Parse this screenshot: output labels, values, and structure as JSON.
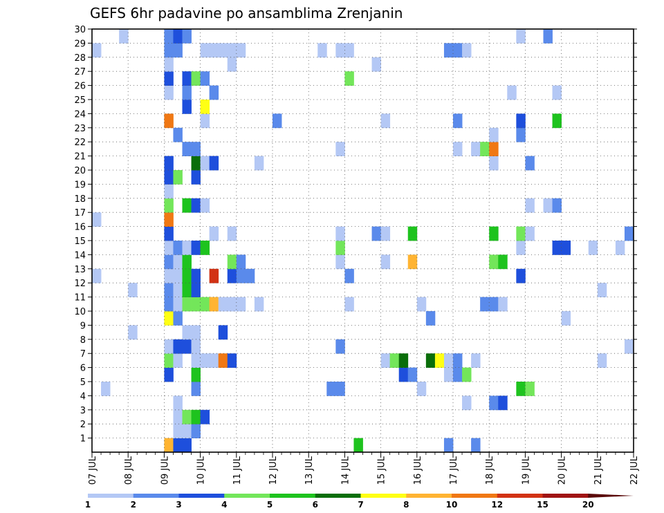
{
  "chart_data": {
    "type": "heatmap",
    "title": "GEFS 6hr padavine po ansamblima Zrenjanin",
    "xlabel": "",
    "ylabel": "",
    "x_tick_labels": [
      "07 JUL",
      "08 JUL",
      "09 JUL",
      "10 JUL",
      "11 JUL",
      "12 JUL",
      "13 JUL",
      "14 JUL",
      "15 JUL",
      "16 JUL",
      "17 JUL",
      "18 JUL",
      "19 JUL",
      "20 JUL",
      "21 JUL",
      "22 JUL"
    ],
    "x_steps_per_day": 4,
    "members": [
      1,
      2,
      3,
      4,
      5,
      6,
      7,
      8,
      9,
      10,
      11,
      12,
      13,
      14,
      15,
      16,
      17,
      18,
      19,
      20,
      21,
      22,
      23,
      24,
      25,
      26,
      27,
      28,
      29,
      30
    ],
    "ylim": [
      0,
      30
    ],
    "grid": true,
    "colorbar": {
      "levels": [
        "1",
        "2",
        "3",
        "4",
        "5",
        "6",
        "7",
        "8",
        "10",
        "12",
        "15",
        "20"
      ],
      "colors": [
        "#b4c8f5",
        "#5a8aeb",
        "#1e4fdc",
        "#73e65a",
        "#1ec31e",
        "#0a6e0a",
        "#ffff14",
        "#ffb432",
        "#f07814",
        "#d23214",
        "#a01414",
        "#5a0a0a"
      ]
    },
    "cells": [
      [
        0,
        8,
        8
      ],
      [
        0,
        9,
        3
      ],
      [
        0,
        10,
        3
      ],
      [
        0,
        29,
        5
      ],
      [
        0,
        39,
        2
      ],
      [
        0,
        42,
        2
      ],
      [
        1,
        9,
        1
      ],
      [
        1,
        10,
        1
      ],
      [
        1,
        11,
        2
      ],
      [
        2,
        9,
        1
      ],
      [
        2,
        10,
        4
      ],
      [
        2,
        11,
        5
      ],
      [
        2,
        12,
        3
      ],
      [
        3,
        9,
        1
      ],
      [
        3,
        41,
        1
      ],
      [
        3,
        44,
        2
      ],
      [
        3,
        45,
        3
      ],
      [
        4,
        1,
        1
      ],
      [
        4,
        11,
        2
      ],
      [
        4,
        26,
        2
      ],
      [
        4,
        27,
        2
      ],
      [
        4,
        36,
        1
      ],
      [
        4,
        47,
        5
      ],
      [
        4,
        48,
        4
      ],
      [
        5,
        8,
        3
      ],
      [
        5,
        11,
        5
      ],
      [
        5,
        34,
        3
      ],
      [
        5,
        35,
        2
      ],
      [
        5,
        39,
        1
      ],
      [
        5,
        40,
        2
      ],
      [
        5,
        41,
        4
      ],
      [
        6,
        8,
        4
      ],
      [
        6,
        9,
        1
      ],
      [
        6,
        11,
        1
      ],
      [
        6,
        12,
        1
      ],
      [
        6,
        13,
        1
      ],
      [
        6,
        14,
        9
      ],
      [
        6,
        15,
        3
      ],
      [
        6,
        32,
        1
      ],
      [
        6,
        33,
        4
      ],
      [
        6,
        34,
        6
      ],
      [
        6,
        37,
        6
      ],
      [
        6,
        38,
        7
      ],
      [
        6,
        39,
        1
      ],
      [
        6,
        40,
        2
      ],
      [
        6,
        42,
        1
      ],
      [
        6,
        56,
        1
      ],
      [
        7,
        8,
        1
      ],
      [
        7,
        9,
        3
      ],
      [
        7,
        10,
        3
      ],
      [
        7,
        11,
        1
      ],
      [
        7,
        27,
        2
      ],
      [
        7,
        59,
        1
      ],
      [
        8,
        4,
        1
      ],
      [
        8,
        10,
        1
      ],
      [
        8,
        11,
        1
      ],
      [
        8,
        14,
        3
      ],
      [
        9,
        8,
        7
      ],
      [
        9,
        9,
        2
      ],
      [
        9,
        37,
        2
      ],
      [
        9,
        52,
        1
      ],
      [
        10,
        8,
        2
      ],
      [
        10,
        9,
        1
      ],
      [
        10,
        10,
        4
      ],
      [
        10,
        11,
        4
      ],
      [
        10,
        12,
        4
      ],
      [
        10,
        13,
        8
      ],
      [
        10,
        14,
        1
      ],
      [
        10,
        15,
        1
      ],
      [
        10,
        16,
        1
      ],
      [
        10,
        18,
        1
      ],
      [
        10,
        28,
        1
      ],
      [
        10,
        36,
        1
      ],
      [
        10,
        43,
        2
      ],
      [
        10,
        44,
        2
      ],
      [
        10,
        45,
        1
      ],
      [
        11,
        4,
        1
      ],
      [
        11,
        8,
        2
      ],
      [
        11,
        9,
        1
      ],
      [
        11,
        10,
        5
      ],
      [
        11,
        11,
        3
      ],
      [
        11,
        56,
        1
      ],
      [
        12,
        0,
        1
      ],
      [
        12,
        8,
        1
      ],
      [
        12,
        9,
        1
      ],
      [
        12,
        10,
        5
      ],
      [
        12,
        11,
        3
      ],
      [
        12,
        13,
        10
      ],
      [
        12,
        15,
        3
      ],
      [
        12,
        16,
        2
      ],
      [
        12,
        17,
        2
      ],
      [
        12,
        28,
        2
      ],
      [
        12,
        47,
        3
      ],
      [
        13,
        8,
        2
      ],
      [
        13,
        9,
        1
      ],
      [
        13,
        10,
        5
      ],
      [
        13,
        15,
        4
      ],
      [
        13,
        16,
        2
      ],
      [
        13,
        27,
        1
      ],
      [
        13,
        32,
        1
      ],
      [
        13,
        35,
        8
      ],
      [
        13,
        44,
        4
      ],
      [
        13,
        45,
        5
      ],
      [
        14,
        8,
        1
      ],
      [
        14,
        9,
        2
      ],
      [
        14,
        10,
        1
      ],
      [
        14,
        11,
        3
      ],
      [
        14,
        12,
        5
      ],
      [
        14,
        27,
        4
      ],
      [
        14,
        47,
        1
      ],
      [
        14,
        51,
        3
      ],
      [
        14,
        52,
        3
      ],
      [
        14,
        55,
        1
      ],
      [
        14,
        58,
        1
      ],
      [
        15,
        8,
        3
      ],
      [
        15,
        13,
        1
      ],
      [
        15,
        15,
        1
      ],
      [
        15,
        27,
        1
      ],
      [
        15,
        31,
        2
      ],
      [
        15,
        32,
        1
      ],
      [
        15,
        35,
        5
      ],
      [
        15,
        44,
        5
      ],
      [
        15,
        47,
        4
      ],
      [
        15,
        48,
        1
      ],
      [
        15,
        59,
        2
      ],
      [
        16,
        0,
        1
      ],
      [
        16,
        8,
        9
      ],
      [
        17,
        8,
        4
      ],
      [
        17,
        10,
        5
      ],
      [
        17,
        11,
        3
      ],
      [
        17,
        12,
        1
      ],
      [
        17,
        48,
        1
      ],
      [
        17,
        50,
        1
      ],
      [
        17,
        51,
        2
      ],
      [
        18,
        8,
        1
      ],
      [
        19,
        8,
        3
      ],
      [
        19,
        9,
        4
      ],
      [
        19,
        11,
        3
      ],
      [
        20,
        8,
        3
      ],
      [
        20,
        11,
        6
      ],
      [
        20,
        12,
        1
      ],
      [
        20,
        13,
        3
      ],
      [
        20,
        18,
        1
      ],
      [
        20,
        44,
        1
      ],
      [
        20,
        48,
        2
      ],
      [
        21,
        10,
        2
      ],
      [
        21,
        11,
        2
      ],
      [
        21,
        27,
        1
      ],
      [
        21,
        40,
        1
      ],
      [
        21,
        42,
        1
      ],
      [
        21,
        43,
        4
      ],
      [
        21,
        44,
        9
      ],
      [
        22,
        9,
        2
      ],
      [
        22,
        44,
        1
      ],
      [
        22,
        47,
        2
      ],
      [
        23,
        8,
        9
      ],
      [
        23,
        12,
        1
      ],
      [
        23,
        20,
        2
      ],
      [
        23,
        32,
        1
      ],
      [
        23,
        40,
        2
      ],
      [
        23,
        47,
        3
      ],
      [
        23,
        51,
        5
      ],
      [
        24,
        10,
        3
      ],
      [
        24,
        12,
        7
      ],
      [
        25,
        8,
        1
      ],
      [
        25,
        10,
        2
      ],
      [
        25,
        13,
        2
      ],
      [
        25,
        46,
        1
      ],
      [
        25,
        51,
        1
      ],
      [
        26,
        8,
        3
      ],
      [
        26,
        10,
        3
      ],
      [
        26,
        11,
        4
      ],
      [
        26,
        12,
        2
      ],
      [
        26,
        28,
        4
      ],
      [
        27,
        8,
        1
      ],
      [
        27,
        15,
        1
      ],
      [
        27,
        31,
        1
      ],
      [
        28,
        0,
        1
      ],
      [
        28,
        8,
        2
      ],
      [
        28,
        9,
        2
      ],
      [
        28,
        12,
        1
      ],
      [
        28,
        13,
        1
      ],
      [
        28,
        14,
        1
      ],
      [
        28,
        15,
        1
      ],
      [
        28,
        16,
        1
      ],
      [
        28,
        25,
        1
      ],
      [
        28,
        27,
        1
      ],
      [
        28,
        28,
        1
      ],
      [
        28,
        39,
        2
      ],
      [
        28,
        40,
        2
      ],
      [
        28,
        41,
        1
      ],
      [
        29,
        3,
        1
      ],
      [
        29,
        8,
        2
      ],
      [
        29,
        9,
        3
      ],
      [
        29,
        10,
        2
      ],
      [
        29,
        47,
        1
      ],
      [
        29,
        50,
        2
      ]
    ]
  }
}
